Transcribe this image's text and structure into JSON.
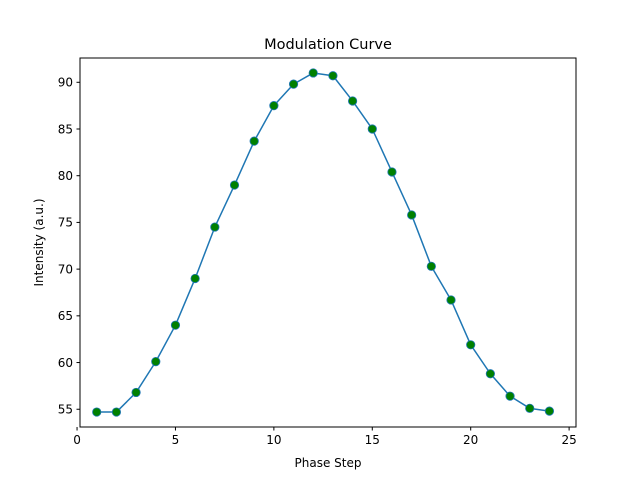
{
  "chart_data": {
    "type": "line",
    "title": "Modulation Curve",
    "xlabel": "Phase Step",
    "ylabel": "Intensity (a.u.)",
    "xlim": [
      0.15,
      25.35
    ],
    "ylim": [
      53.1,
      92.6
    ],
    "xticks": [
      0,
      5,
      10,
      15,
      20,
      25
    ],
    "yticks": [
      55,
      60,
      65,
      70,
      75,
      80,
      85,
      90
    ],
    "grid": false,
    "line_color": "#1f77b4",
    "marker_color": "#008000",
    "x": [
      1,
      2,
      3,
      4,
      5,
      6,
      7,
      8,
      9,
      10,
      11,
      12,
      13,
      14,
      15,
      16,
      17,
      18,
      19,
      20,
      21,
      22,
      23,
      24
    ],
    "y": [
      54.7,
      54.7,
      56.8,
      60.1,
      64.0,
      69.0,
      74.5,
      79.0,
      83.7,
      87.5,
      89.8,
      91.0,
      90.7,
      88.0,
      85.0,
      80.4,
      75.8,
      70.3,
      66.7,
      61.9,
      58.8,
      56.4,
      55.1,
      54.8
    ]
  }
}
